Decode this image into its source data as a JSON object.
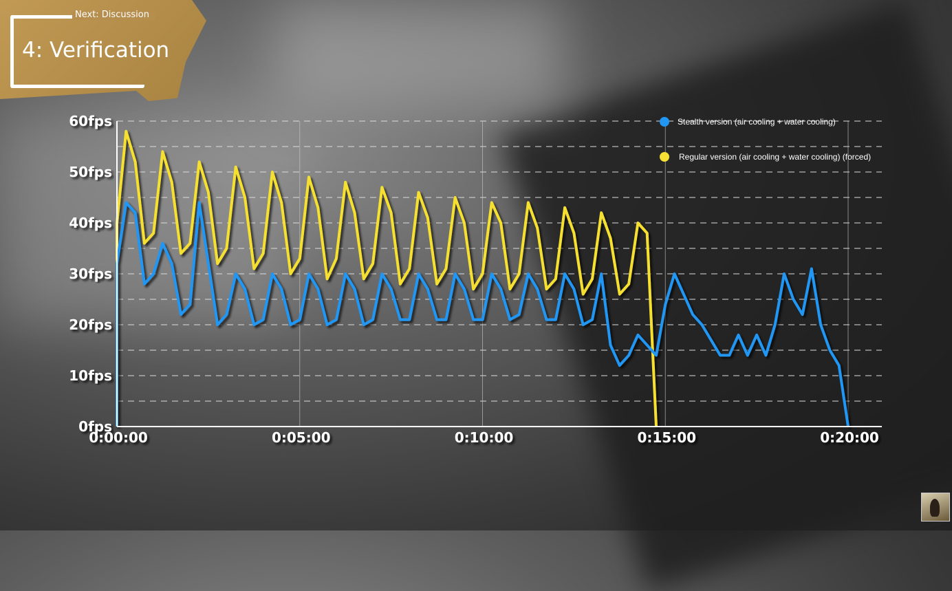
{
  "overlay": {
    "next_label": "Next: Discussion",
    "section_title": "4: Verification"
  },
  "chart_data": {
    "type": "line",
    "title": "",
    "xlabel": "",
    "ylabel": "",
    "x_ticks": [
      "0:00:00",
      "0:05:00",
      "0:10:00",
      "0:15:00",
      "0:20:00"
    ],
    "y_ticks": [
      "0fps",
      "10fps",
      "20fps",
      "30fps",
      "40fps",
      "50fps",
      "60fps"
    ],
    "ylim": [
      0,
      60
    ],
    "xlim_minutes": [
      0,
      21
    ],
    "x_step": "0:00:15",
    "grid": {
      "horizontal": "dashed every 5fps",
      "vertical": "solid every 5 minutes"
    },
    "legend_position": "top-right",
    "series": [
      {
        "name": "Stealth version (air cooling + water cooling)",
        "color": "#2196f3",
        "values": [
          32,
          44,
          42,
          28,
          30,
          36,
          32,
          22,
          24,
          44,
          32,
          20,
          22,
          30,
          27,
          20,
          21,
          30,
          27,
          20,
          21,
          30,
          27,
          20,
          21,
          30,
          27,
          20,
          21,
          30,
          27,
          21,
          21,
          30,
          27,
          21,
          21,
          30,
          27,
          21,
          21,
          30,
          27,
          21,
          22,
          30,
          27,
          21,
          21,
          30,
          27,
          20,
          21,
          30,
          16,
          12,
          14,
          18,
          16,
          14,
          24,
          30,
          26,
          22,
          20,
          17,
          14,
          14,
          18,
          14,
          18,
          14,
          20,
          30,
          25,
          22,
          31,
          20,
          15,
          12,
          0
        ]
      },
      {
        "name": "Regular version (air cooling + water cooling) (forced)",
        "color": "#f5e033",
        "values": [
          40,
          58,
          52,
          36,
          38,
          54,
          48,
          34,
          36,
          52,
          46,
          32,
          35,
          51,
          45,
          31,
          34,
          50,
          44,
          30,
          33,
          49,
          43,
          29,
          33,
          48,
          42,
          29,
          32,
          47,
          42,
          28,
          31,
          46,
          41,
          28,
          31,
          45,
          40,
          27,
          30,
          44,
          40,
          27,
          30,
          44,
          39,
          27,
          29,
          43,
          38,
          26,
          29,
          42,
          37,
          26,
          28,
          40,
          38,
          0
        ]
      }
    ]
  }
}
